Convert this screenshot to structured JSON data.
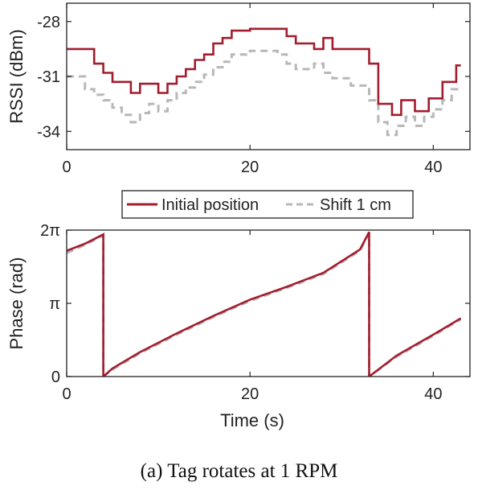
{
  "caption": "(a) Tag rotates at 1 RPM",
  "colors": {
    "initial": "#a21d2e",
    "shift": "#b8b8b8",
    "axis": "#222222"
  },
  "legend": {
    "items": [
      "Initial position",
      "Shift 1 cm"
    ],
    "placement": "between-panels"
  },
  "chart_data": [
    {
      "type": "line",
      "ylabel": "RSSI (dBm)",
      "xlabel": "",
      "xlim": [
        0,
        44
      ],
      "ylim": [
        -35,
        -27
      ],
      "xticks": [
        0,
        20,
        40
      ],
      "xtick_labels": [
        "0",
        "20",
        "40"
      ],
      "yticks": [
        -28,
        -31,
        -34
      ],
      "ytick_labels": [
        "-28",
        "-31",
        "-34"
      ],
      "series": [
        {
          "name": "Initial position",
          "style": "solid",
          "x": [
            0,
            3,
            3,
            4,
            4,
            5,
            5,
            7,
            7,
            8,
            8,
            10,
            10,
            11,
            11,
            12,
            12,
            13,
            13,
            14,
            14,
            15,
            15,
            16,
            16,
            17,
            17,
            18,
            18,
            20,
            20,
            24,
            24,
            25,
            25,
            27,
            27,
            28,
            28,
            29,
            29,
            33,
            33,
            34,
            34,
            35.5,
            35.5,
            36.5,
            36.5,
            38,
            38,
            39.5,
            39.5,
            41,
            41,
            42.5,
            42.5,
            43
          ],
          "y": [
            -29.5,
            -29.5,
            -30.3,
            -30.3,
            -30.8,
            -30.8,
            -31.3,
            -31.3,
            -31.9,
            -31.9,
            -31.4,
            -31.4,
            -31.9,
            -31.9,
            -31.4,
            -31.4,
            -31,
            -31,
            -30.6,
            -30.6,
            -30.1,
            -30.1,
            -29.8,
            -29.8,
            -29.2,
            -29.2,
            -28.9,
            -28.9,
            -28.5,
            -28.5,
            -28.4,
            -28.4,
            -28.8,
            -28.8,
            -29.2,
            -29.2,
            -29.5,
            -29.5,
            -28.9,
            -28.9,
            -29.5,
            -29.5,
            -30.3,
            -30.3,
            -32.5,
            -32.5,
            -33.1,
            -33.1,
            -32.3,
            -32.3,
            -32.9,
            -32.9,
            -32.2,
            -32.2,
            -31.3,
            -31.3,
            -30.4,
            -30.4
          ]
        },
        {
          "name": "Shift 1 cm",
          "style": "dashed",
          "x": [
            0,
            2,
            2,
            3,
            3,
            4,
            4,
            5,
            5,
            6,
            6,
            7,
            7,
            8,
            8,
            9,
            9,
            10,
            10,
            11,
            11,
            12,
            12,
            13,
            13,
            14,
            14,
            15,
            15,
            16,
            16,
            17,
            17,
            18,
            18,
            20,
            20,
            23,
            23,
            24,
            24,
            25,
            25,
            27,
            27,
            28,
            28,
            29,
            29,
            31,
            31,
            33,
            33,
            34,
            34,
            35,
            35,
            36,
            36,
            37,
            37,
            38,
            38,
            39,
            39,
            40,
            40,
            41,
            41,
            42,
            42,
            43
          ],
          "y": [
            -31,
            -31,
            -31.7,
            -31.7,
            -32,
            -32,
            -32.3,
            -32.3,
            -32.7,
            -32.7,
            -33.1,
            -33.1,
            -33.5,
            -33.5,
            -33,
            -33,
            -32.5,
            -32.5,
            -32.9,
            -32.9,
            -32.3,
            -32.3,
            -31.9,
            -31.9,
            -31.6,
            -31.6,
            -31.3,
            -31.3,
            -30.9,
            -30.9,
            -30.5,
            -30.5,
            -30.2,
            -30.2,
            -29.8,
            -29.8,
            -29.6,
            -29.6,
            -29.8,
            -29.8,
            -30.3,
            -30.3,
            -30.6,
            -30.6,
            -30.3,
            -30.3,
            -30.8,
            -30.8,
            -31.1,
            -31.1,
            -31.5,
            -31.5,
            -32.3,
            -32.3,
            -33.5,
            -33.5,
            -34.2,
            -34.2,
            -33.7,
            -33.7,
            -33.2,
            -33.2,
            -33.7,
            -33.7,
            -33.2,
            -33.2,
            -32.8,
            -32.8,
            -32.3,
            -32.3,
            -31.7,
            -31.7
          ]
        }
      ]
    },
    {
      "type": "line",
      "ylabel": "Phase (rad)",
      "xlabel": "Time (s)",
      "xlim": [
        0,
        44
      ],
      "ylim": [
        0,
        6.283
      ],
      "xticks": [
        0,
        20,
        40
      ],
      "xtick_labels": [
        "0",
        "20",
        "40"
      ],
      "yticks": [
        0,
        3.1416,
        6.2832
      ],
      "ytick_labels": [
        "0",
        "π",
        "2π"
      ],
      "series": [
        {
          "name": "Initial position",
          "style": "solid",
          "x": [
            0,
            2,
            4,
            4,
            5,
            8,
            12,
            16,
            20,
            24,
            28,
            32,
            33,
            33,
            36,
            40,
            43
          ],
          "y": [
            5.4,
            5.7,
            6.1,
            0.0,
            0.35,
            1.05,
            1.85,
            2.6,
            3.3,
            3.85,
            4.45,
            5.45,
            6.2,
            0.0,
            0.9,
            1.8,
            2.5
          ]
        },
        {
          "name": "Shift 1 cm",
          "style": "dashed",
          "x": [
            0,
            2,
            4,
            4,
            5,
            8,
            12,
            16,
            20,
            24,
            28,
            32,
            33,
            33,
            36,
            40,
            43
          ],
          "y": [
            5.3,
            5.65,
            6.05,
            0.0,
            0.3,
            1.0,
            1.8,
            2.55,
            3.25,
            3.8,
            4.4,
            5.4,
            6.15,
            0.0,
            0.85,
            1.75,
            2.45
          ]
        }
      ]
    }
  ]
}
